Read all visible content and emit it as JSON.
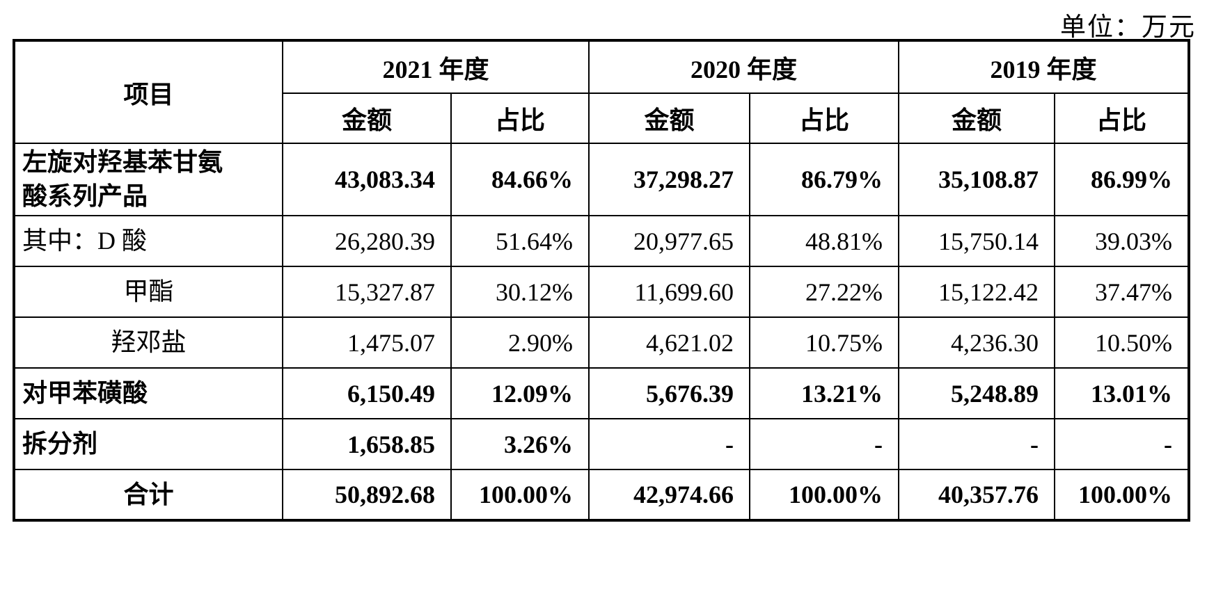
{
  "unit_label": "单位：万元",
  "table": {
    "header": {
      "item": "项目",
      "years": [
        {
          "label": "2021 年度",
          "amount": "金额",
          "ratio": "占比"
        },
        {
          "label": "2020 年度",
          "amount": "金额",
          "ratio": "占比"
        },
        {
          "label": "2019 年度",
          "amount": "金额",
          "ratio": "占比"
        }
      ]
    },
    "rows": [
      {
        "label": "左旋对羟基苯甘氨\n酸系列产品",
        "align": "left",
        "bold": true,
        "values": [
          "43,083.34",
          "84.66%",
          "37,298.27",
          "86.79%",
          "35,108.87",
          "86.99%"
        ]
      },
      {
        "label": "其中：D 酸",
        "align": "left",
        "bold": false,
        "values": [
          "26,280.39",
          "51.64%",
          "20,977.65",
          "48.81%",
          "15,750.14",
          "39.03%"
        ]
      },
      {
        "label": "甲酯",
        "align": "center",
        "bold": false,
        "values": [
          "15,327.87",
          "30.12%",
          "11,699.60",
          "27.22%",
          "15,122.42",
          "37.47%"
        ]
      },
      {
        "label": "羟邓盐",
        "align": "center",
        "bold": false,
        "values": [
          "1,475.07",
          "2.90%",
          "4,621.02",
          "10.75%",
          "4,236.30",
          "10.50%"
        ]
      },
      {
        "label": "对甲苯磺酸",
        "align": "left",
        "bold": true,
        "values": [
          "6,150.49",
          "12.09%",
          "5,676.39",
          "13.21%",
          "5,248.89",
          "13.01%"
        ]
      },
      {
        "label": "拆分剂",
        "align": "left",
        "bold": true,
        "values": [
          "1,658.85",
          "3.26%",
          "-",
          "-",
          "-",
          "-"
        ]
      },
      {
        "label": "合计",
        "align": "center",
        "bold": true,
        "values": [
          "50,892.68",
          "100.00%",
          "42,974.66",
          "100.00%",
          "40,357.76",
          "100.00%"
        ]
      }
    ]
  }
}
